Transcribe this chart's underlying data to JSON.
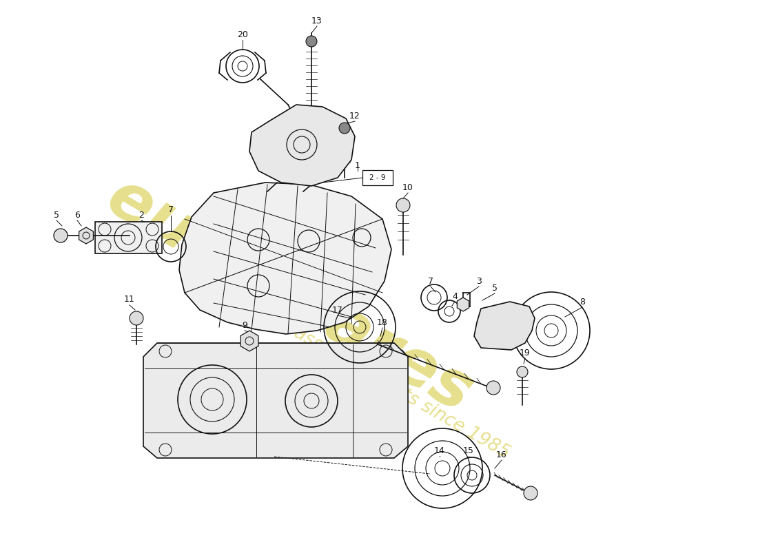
{
  "background_color": "#ffffff",
  "line_color": "#111111",
  "wm_color": "#c8b800",
  "figsize": [
    11.0,
    8.0
  ],
  "dpi": 100
}
